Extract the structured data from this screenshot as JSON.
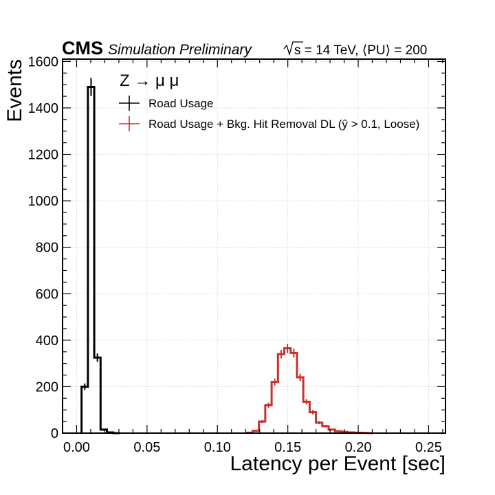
{
  "header": {
    "experiment": "CMS",
    "status": "Simulation Preliminary",
    "energy_label": "s = 14 TeV, ⟨PU⟩ = 200"
  },
  "chart_data": {
    "type": "histogram",
    "xlabel": "Latency per Event [sec]",
    "ylabel": "Events",
    "xlim": [
      -0.01,
      0.262
    ],
    "ylim": [
      0,
      1610
    ],
    "x_ticks": [
      0.0,
      0.05,
      0.1,
      0.15,
      0.2,
      0.25
    ],
    "x_tick_labels": [
      "0.00",
      "0.05",
      "0.10",
      "0.15",
      "0.20",
      "0.25"
    ],
    "y_ticks": [
      0,
      200,
      400,
      600,
      800,
      1000,
      1200,
      1400,
      1600
    ],
    "y_tick_labels": [
      "0",
      "200",
      "400",
      "600",
      "800",
      "1000",
      "1200",
      "1400",
      "1600"
    ],
    "grid": true,
    "legend": {
      "placement": "top-left",
      "title": "Z → μ μ",
      "entries": [
        "Road Usage",
        "Road Usage + Bkg. Hit Removal DL (ŷ > 0.1, Loose)"
      ]
    },
    "bin_width": 0.0045,
    "series": [
      {
        "name": "Road Usage",
        "color": "#000000",
        "bin_low_edges": [
          0.0035,
          0.008,
          0.0125,
          0.017,
          0.0215,
          0.026
        ],
        "values": [
          200,
          1490,
          325,
          15,
          3,
          0
        ]
      },
      {
        "name": "Road Usage + Bkg. Hit Removal DL (ŷ > 0.1, Loose)",
        "color": "#c8302e",
        "bin_low_edges": [
          0.1205,
          0.125,
          0.1295,
          0.134,
          0.1385,
          0.143,
          0.1475,
          0.152,
          0.1565,
          0.161,
          0.1655,
          0.17,
          0.1745,
          0.179,
          0.1835,
          0.188,
          0.1925,
          0.197,
          0.2015,
          0.206
        ],
        "values": [
          2,
          10,
          50,
          120,
          220,
          340,
          365,
          345,
          240,
          135,
          90,
          45,
          30,
          15,
          8,
          5,
          3,
          2,
          1,
          0
        ]
      }
    ]
  }
}
